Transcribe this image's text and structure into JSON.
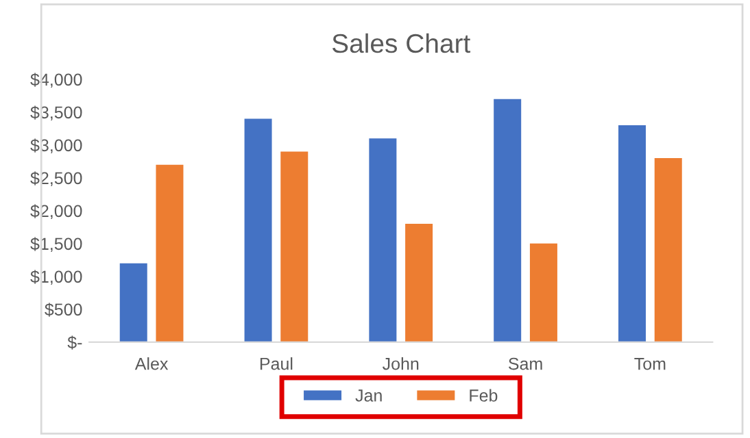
{
  "chart_data": {
    "type": "bar",
    "title": "Sales Chart",
    "categories": [
      "Alex",
      "Paul",
      "John",
      "Sam",
      "Tom"
    ],
    "series": [
      {
        "name": "Jan",
        "color": "#4472c4",
        "values": [
          1200,
          3400,
          3100,
          3700,
          3300
        ]
      },
      {
        "name": "Feb",
        "color": "#ed7d31",
        "values": [
          2700,
          2900,
          1800,
          1500,
          2800
        ]
      }
    ],
    "ylim": [
      0,
      4000
    ],
    "yticks": [
      {
        "value": 0,
        "label": "$-"
      },
      {
        "value": 500,
        "label": "$500"
      },
      {
        "value": 1000,
        "label": "$1,000"
      },
      {
        "value": 1500,
        "label": "$1,500"
      },
      {
        "value": 2000,
        "label": "$2,000"
      },
      {
        "value": 2500,
        "label": "$2,500"
      },
      {
        "value": 3000,
        "label": "$3,000"
      },
      {
        "value": 3500,
        "label": "$3,500"
      },
      {
        "value": 4000,
        "label": "$4,000"
      }
    ],
    "grid": false,
    "legend": "bottom"
  }
}
